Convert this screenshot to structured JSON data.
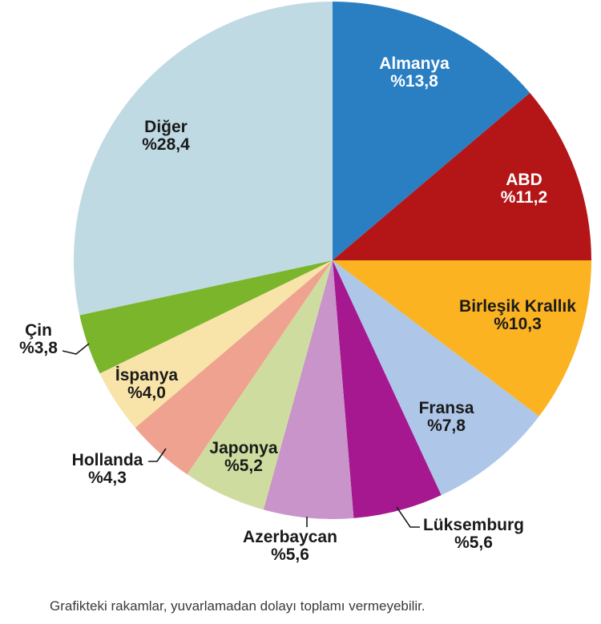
{
  "chart_data": {
    "type": "pie",
    "title": "",
    "value_format": "percent-comma-decimal",
    "start_angle_deg": 0,
    "direction": "clockwise",
    "slices": [
      {
        "id": "almanya",
        "name": "Almanya",
        "value": 13.8,
        "display": "%13,8",
        "color": "#2A7FC3",
        "label_color": "#FFFFFF"
      },
      {
        "id": "abd",
        "name": "ABD",
        "value": 11.2,
        "display": "%11,2",
        "color": "#B41617",
        "label_color": "#FFFFFF"
      },
      {
        "id": "birlesik-krallik",
        "name": "Birleşik Krallık",
        "value": 10.3,
        "display": "%10,3",
        "color": "#FBB322",
        "label_color": "#1A1A1A"
      },
      {
        "id": "fransa",
        "name": "Fransa",
        "value": 7.8,
        "display": "%7,8",
        "color": "#AEC6E8",
        "label_color": "#1A1A1A"
      },
      {
        "id": "luksemburg",
        "name": "Lüksemburg",
        "value": 5.6,
        "display": "%5,6",
        "color": "#A5188F",
        "label_color": "#1A1A1A"
      },
      {
        "id": "azerbaycan",
        "name": "Azerbaycan",
        "value": 5.6,
        "display": "%5,6",
        "color": "#C894C9",
        "label_color": "#1A1A1A"
      },
      {
        "id": "japonya",
        "name": "Japonya",
        "value": 5.2,
        "display": "%5,2",
        "color": "#CEDD9F",
        "label_color": "#1A1A1A"
      },
      {
        "id": "hollanda",
        "name": "Hollanda",
        "value": 4.3,
        "display": "%4,3",
        "color": "#EEA28F",
        "label_color": "#1A1A1A"
      },
      {
        "id": "ispanya",
        "name": "İspanya",
        "value": 4.0,
        "display": "%4,0",
        "color": "#F8E3A8",
        "label_color": "#1A1A1A"
      },
      {
        "id": "cin",
        "name": "Çin",
        "value": 3.8,
        "display": "%3,8",
        "color": "#7AB52B",
        "label_color": "#1A1A1A"
      },
      {
        "id": "diger",
        "name": "Diğer",
        "value": 28.4,
        "display": "%28,4",
        "color": "#BFDAE3",
        "label_color": "#1A1A1A"
      }
    ],
    "footnote": "Grafikteki rakamlar, yuvarlamadan dolayı toplamı vermeyebilir."
  }
}
